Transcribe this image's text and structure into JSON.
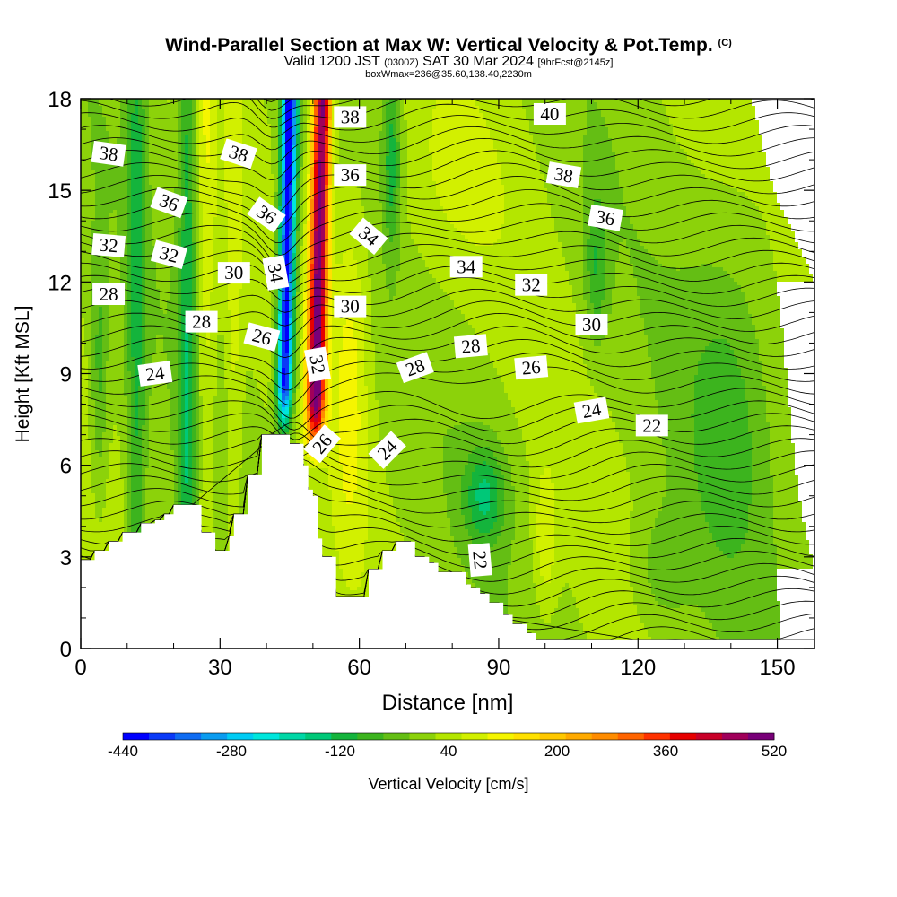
{
  "header": {
    "title": "Wind-Parallel Section at Max W: Vertical Velocity & Pot.Temp.",
    "copyright": "(C)",
    "valid_prefix": "Valid 1200 JST",
    "valid_zulu": "(0300Z)",
    "valid_date": "SAT 30 Mar 2024",
    "forecast_info": "[9hrFcst@2145z]",
    "box_info": "boxWmax=236@35.60,138.40,2230m"
  },
  "chart_data": {
    "type": "heatmap",
    "xlabel": "Distance [nm]",
    "ylabel": "Height [Kft MSL]",
    "xlim": [
      0,
      158
    ],
    "ylim": [
      0,
      18
    ],
    "x_ticks": [
      0,
      30,
      60,
      90,
      120,
      150
    ],
    "y_ticks": [
      0,
      3,
      6,
      9,
      12,
      15,
      18
    ],
    "terrain_profile": {
      "x": [
        0,
        3,
        3,
        6,
        6,
        7,
        7,
        9,
        9,
        13,
        13,
        16,
        16,
        18,
        18,
        20,
        20,
        23,
        23,
        26,
        26,
        29,
        29,
        30,
        30,
        32,
        32,
        33,
        33,
        36,
        36,
        39,
        39,
        42,
        42,
        45,
        45,
        48,
        48,
        49,
        49,
        50,
        50,
        51,
        51,
        52,
        52,
        55,
        55,
        58,
        58,
        62,
        62,
        65,
        65,
        68,
        68,
        72,
        72,
        75,
        75,
        77,
        77,
        80,
        80,
        83,
        83,
        84,
        84,
        86,
        86,
        88,
        88,
        91,
        91,
        93,
        93,
        96,
        96,
        98,
        98,
        100,
        100,
        158
      ],
      "height": [
        2.9,
        2.9,
        3.2,
        3.2,
        3.5,
        3.5,
        3.5,
        3.5,
        3.8,
        3.8,
        4.1,
        4.1,
        4.2,
        4.2,
        4.4,
        4.4,
        4.7,
        4.7,
        4.7,
        4.7,
        3.8,
        3.8,
        3.2,
        3.2,
        3.2,
        3.2,
        3.7,
        3.7,
        4.4,
        4.4,
        5.7,
        5.7,
        7.0,
        7.0,
        7.0,
        7.0,
        6.7,
        6.7,
        6.0,
        6.0,
        5.2,
        5.2,
        5.0,
        5.0,
        3.6,
        3.6,
        3.0,
        3.0,
        1.7,
        1.7,
        1.7,
        1.7,
        2.6,
        2.6,
        3.2,
        3.2,
        3.5,
        3.5,
        3.0,
        3.0,
        2.8,
        2.8,
        2.5,
        2.5,
        2.5,
        2.5,
        2.1,
        2.1,
        2.0,
        2.0,
        1.8,
        1.8,
        1.5,
        1.5,
        1.1,
        1.1,
        0.8,
        0.8,
        0.5,
        0.5,
        0.3,
        0.3,
        0.3,
        0.3
      ]
    },
    "theta_contours_C": [
      22,
      24,
      26,
      28,
      30,
      32,
      34,
      36,
      38,
      40
    ],
    "contour_labels": [
      {
        "text": "38",
        "x": 6,
        "y": 16.2,
        "angle": 8
      },
      {
        "text": "38",
        "x": 34,
        "y": 16.2,
        "angle": 18
      },
      {
        "text": "38",
        "x": 58,
        "y": 17.4,
        "angle": 0
      },
      {
        "text": "40",
        "x": 101,
        "y": 17.5,
        "angle": 0
      },
      {
        "text": "38",
        "x": 104,
        "y": 15.5,
        "angle": 10
      },
      {
        "text": "36",
        "x": 19,
        "y": 14.6,
        "angle": 20
      },
      {
        "text": "36",
        "x": 40,
        "y": 14.2,
        "angle": 35
      },
      {
        "text": "36",
        "x": 58,
        "y": 15.5,
        "angle": 0
      },
      {
        "text": "36",
        "x": 113,
        "y": 14.1,
        "angle": 10
      },
      {
        "text": "34",
        "x": 62,
        "y": 13.5,
        "angle": 40
      },
      {
        "text": "34",
        "x": 83,
        "y": 12.5,
        "angle": 0
      },
      {
        "text": "34",
        "x": 42,
        "y": 12.3,
        "angle": 80
      },
      {
        "text": "32",
        "x": 6,
        "y": 13.2,
        "angle": 5
      },
      {
        "text": "32",
        "x": 19,
        "y": 12.9,
        "angle": 15
      },
      {
        "text": "32",
        "x": 97,
        "y": 11.9,
        "angle": 0
      },
      {
        "text": "32",
        "x": 51,
        "y": 9.3,
        "angle": 80
      },
      {
        "text": "30",
        "x": 33,
        "y": 12.3,
        "angle": 0
      },
      {
        "text": "30",
        "x": 58,
        "y": 11.2,
        "angle": 0
      },
      {
        "text": "30",
        "x": 110,
        "y": 10.6,
        "angle": 0
      },
      {
        "text": "28",
        "x": 6,
        "y": 11.6,
        "angle": 0
      },
      {
        "text": "28",
        "x": 26,
        "y": 10.7,
        "angle": 0
      },
      {
        "text": "28",
        "x": 72,
        "y": 9.2,
        "angle": -20
      },
      {
        "text": "28",
        "x": 84,
        "y": 9.9,
        "angle": -5
      },
      {
        "text": "26",
        "x": 39,
        "y": 10.2,
        "angle": 15
      },
      {
        "text": "26",
        "x": 97,
        "y": 9.2,
        "angle": -5
      },
      {
        "text": "26",
        "x": 52,
        "y": 6.7,
        "angle": -50
      },
      {
        "text": "24",
        "x": 16,
        "y": 9.0,
        "angle": -8
      },
      {
        "text": "24",
        "x": 66,
        "y": 6.5,
        "angle": -45
      },
      {
        "text": "24",
        "x": 110,
        "y": 7.8,
        "angle": -10
      },
      {
        "text": "22",
        "x": 123,
        "y": 7.3,
        "angle": 0
      },
      {
        "text": "22",
        "x": 86,
        "y": 2.9,
        "angle": 85
      }
    ],
    "colorbar": {
      "title": "Vertical Velocity [cm/s]",
      "min": -440,
      "max": 520,
      "step": 40,
      "tick_labels": [
        "-440",
        "-280",
        "-120",
        "40",
        "200",
        "360",
        "520"
      ],
      "colors": [
        "#0000ff",
        "#0a3af8",
        "#0f6cf2",
        "#0a9cf0",
        "#00ccf4",
        "#00e6dc",
        "#00d7a6",
        "#00c878",
        "#14b43c",
        "#3cb41e",
        "#64be14",
        "#8cd20a",
        "#b4e600",
        "#d2f000",
        "#f5f500",
        "#ffe100",
        "#ffc800",
        "#ffaa00",
        "#ff8c00",
        "#ff6400",
        "#ff3200",
        "#e60000",
        "#c80028",
        "#a0005a",
        "#780078"
      ]
    },
    "updraft_core": {
      "x_center": 52,
      "peak_cm_s": 520
    },
    "downdraft_core": {
      "x_center": 45,
      "peak_cm_s": -440
    }
  }
}
